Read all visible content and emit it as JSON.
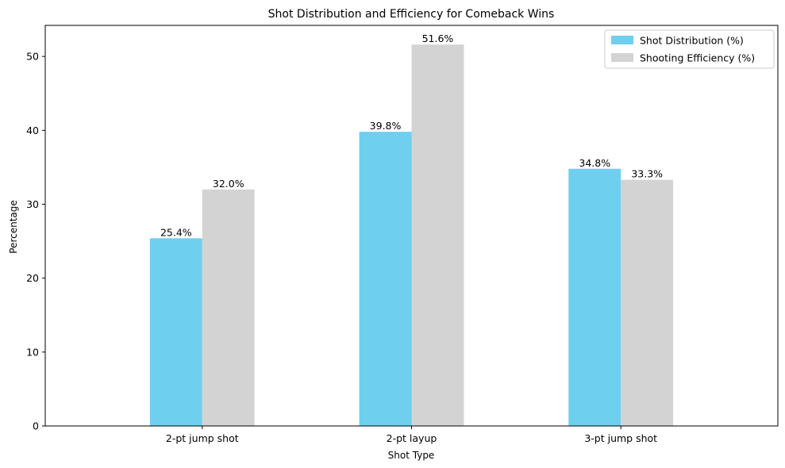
{
  "chart_data": {
    "type": "bar",
    "title": "Shot Distribution and Efficiency for Comeback Wins",
    "xlabel": "Shot Type",
    "ylabel": "Percentage",
    "categories": [
      "2-pt jump shot",
      "2-pt layup",
      "3-pt jump shot"
    ],
    "ylim": [
      0,
      54.2
    ],
    "yticks": [
      0,
      10,
      20,
      30,
      40,
      50
    ],
    "legend_position": "top-right",
    "series": [
      {
        "name": "Shot Distribution (%)",
        "color": "#6ecfef",
        "values": [
          25.4,
          39.8,
          34.8
        ],
        "labels": [
          "25.4%",
          "39.8%",
          "34.8%"
        ]
      },
      {
        "name": "Shooting Efficiency (%)",
        "color": "#d3d3d3",
        "values": [
          32.0,
          51.6,
          33.3
        ],
        "labels": [
          "32.0%",
          "51.6%",
          "33.3%"
        ]
      }
    ]
  }
}
